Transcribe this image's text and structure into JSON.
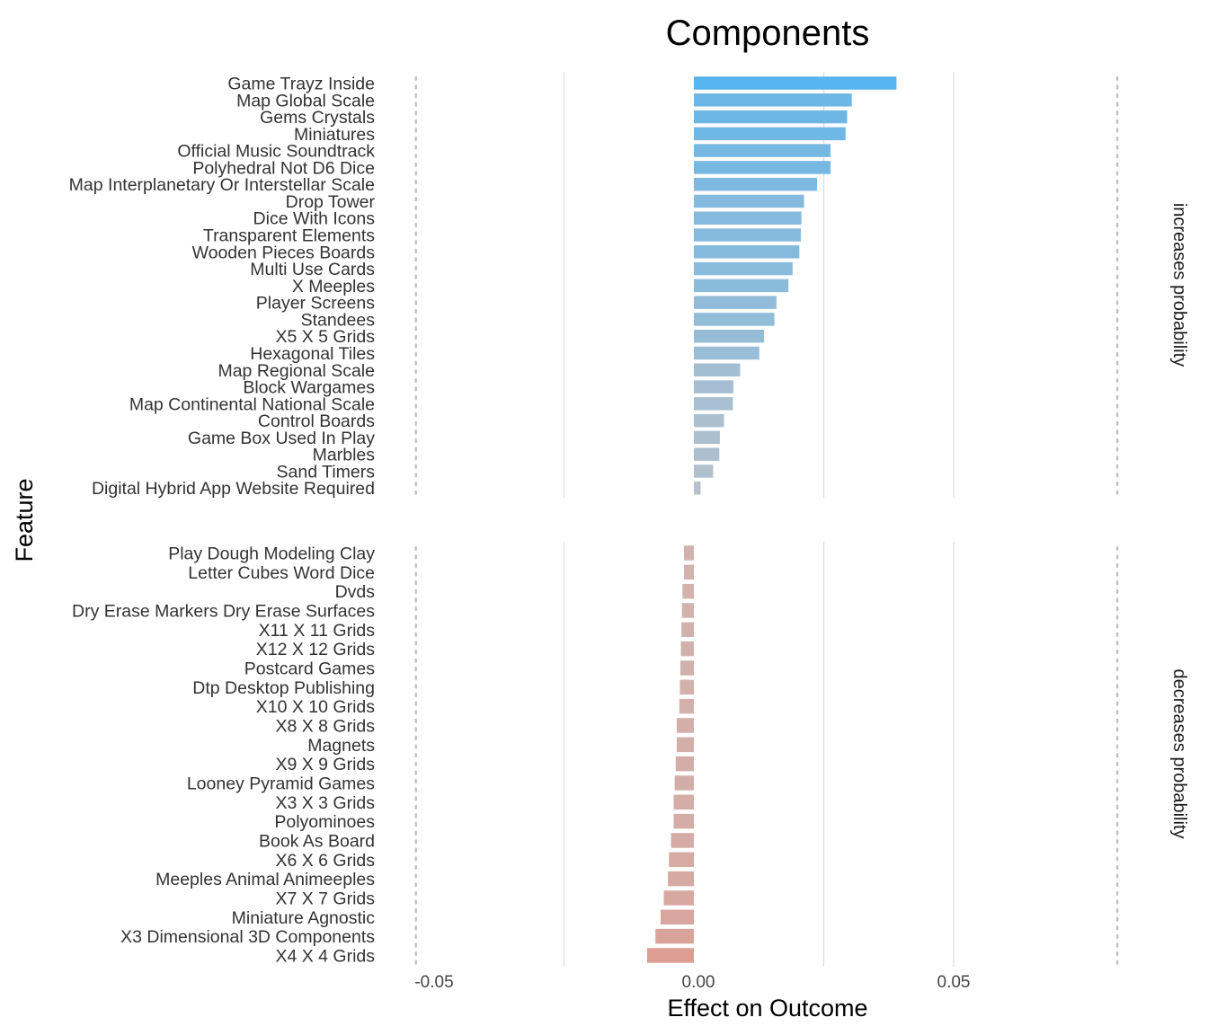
{
  "chart_data": {
    "type": "bar",
    "orientation": "horizontal",
    "title": "Components",
    "xlabel": "Effect on Outcome",
    "ylabel": "Feature",
    "xlim": [
      -0.0545,
      0.0815
    ],
    "x_ticks": [
      -0.05,
      0.0,
      0.05
    ],
    "x_tick_labels": [
      "-0.05",
      "0.00",
      "0.05"
    ],
    "reference_lines": [
      -0.0535,
      0.0815
    ],
    "grid": true,
    "legend": "none",
    "colors": {
      "positive_high": "#56B4EE",
      "positive_low": "#B9C1CA",
      "negative_low": "#CDB8B6",
      "negative_high": "#DC9F94",
      "grid": "#DEDEDE"
    },
    "facets": [
      {
        "label": "increases probability",
        "categories": [
          "Game Trayz Inside",
          "Map Global Scale",
          "Gems Crystals",
          "Miniatures",
          "Official Music Soundtrack",
          "Polyhedral Not D6 Dice",
          "Map Interplanetary Or Interstellar Scale",
          "Drop Tower",
          "Dice With Icons",
          "Transparent Elements",
          "Wooden Pieces Boards",
          "Multi Use Cards",
          "X Meeples",
          "Player Screens",
          "Standees",
          "X5 X 5 Grids",
          "Hexagonal Tiles",
          "Map Regional Scale",
          "Block Wargames",
          "Map Continental National Scale",
          "Control Boards",
          "Game Box Used In Play",
          "Marbles",
          "Sand Timers",
          "Digital Hybrid App Website Required"
        ],
        "values": [
          0.039,
          0.0304,
          0.0295,
          0.0292,
          0.0263,
          0.0263,
          0.0237,
          0.0212,
          0.0207,
          0.0206,
          0.0203,
          0.019,
          0.0182,
          0.0159,
          0.0155,
          0.0135,
          0.0126,
          0.0089,
          0.0076,
          0.0075,
          0.0058,
          0.005,
          0.0049,
          0.0037,
          0.0013
        ]
      },
      {
        "label": "decreases probability",
        "categories": [
          "Play Dough Modeling Clay",
          "Letter Cubes Word Dice",
          "Dvds",
          "Dry Erase Markers Dry Erase Surfaces",
          "X11 X 11 Grids",
          "X12 X 12 Grids",
          "Postcard Games",
          "Dtp Desktop Publishing",
          "X10 X 10 Grids",
          "X8 X 8 Grids",
          "Magnets",
          "X9 X 9 Grids",
          "Looney Pyramid Games",
          "X3 X 3 Grids",
          "Polyominoes",
          "Book As Board",
          "X6 X 6 Grids",
          "Meeples Animal Animeeples",
          "X7 X 7 Grids",
          "Miniature Agnostic",
          "X3 Dimensional 3D Components",
          "X4 X 4 Grids"
        ],
        "values": [
          -0.0019,
          -0.0019,
          -0.0022,
          -0.0023,
          -0.0024,
          -0.0025,
          -0.0026,
          -0.0027,
          -0.0028,
          -0.0033,
          -0.0033,
          -0.0035,
          -0.0037,
          -0.0039,
          -0.0039,
          -0.0044,
          -0.0048,
          -0.005,
          -0.0058,
          -0.0064,
          -0.0074,
          -0.009
        ]
      }
    ]
  }
}
